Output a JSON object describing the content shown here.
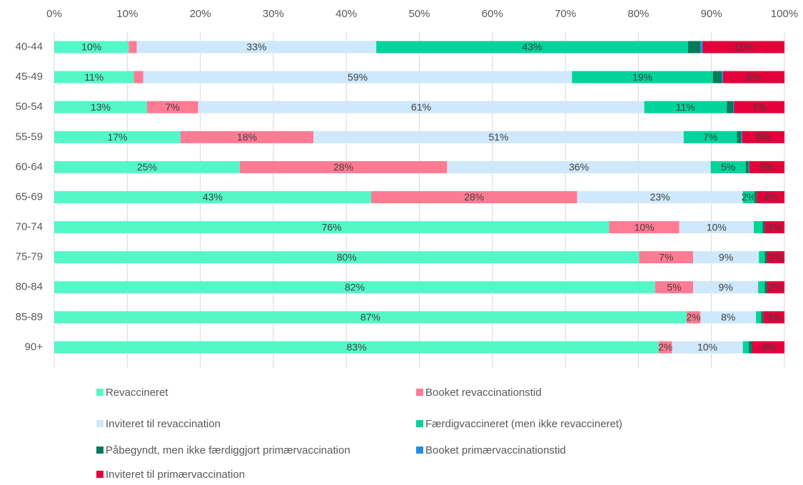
{
  "chart_data": {
    "type": "stacked-bar-horizontal",
    "categories": [
      "40-44",
      "45-49",
      "50-54",
      "55-59",
      "60-64",
      "65-69",
      "70-74",
      "75-79",
      "80-84",
      "85-89",
      "90+"
    ],
    "xlim": [
      0,
      100
    ],
    "xticks": [
      {
        "value": 0,
        "label": "0%"
      },
      {
        "value": 10,
        "label": "10%"
      },
      {
        "value": 20,
        "label": "20%"
      },
      {
        "value": 30,
        "label": "30%"
      },
      {
        "value": 40,
        "label": "40%"
      },
      {
        "value": 50,
        "label": "50%"
      },
      {
        "value": 60,
        "label": "60%"
      },
      {
        "value": 70,
        "label": "70%"
      },
      {
        "value": 80,
        "label": "80%"
      },
      {
        "value": 90,
        "label": "90%"
      },
      {
        "value": 100,
        "label": "100%"
      }
    ],
    "grid": true,
    "series": [
      {
        "name": "Revaccineret",
        "color": "#54f7c8",
        "values": [
          10.2,
          10.9,
          12.7,
          17.3,
          25.4,
          43.4,
          76.0,
          80.1,
          82.3,
          86.6,
          82.8
        ],
        "value_labels": [
          "10%",
          "11%",
          "13%",
          "17%",
          "25%",
          "43%",
          "76%",
          "80%",
          "82%",
          "87%",
          "83%"
        ]
      },
      {
        "name": "Booket revaccinationstid",
        "color": "#ff7b93",
        "values": [
          1.1,
          1.3,
          7.0,
          18.2,
          28.4,
          28.2,
          9.6,
          7.4,
          5.2,
          1.9,
          1.8
        ],
        "value_labels": [
          null,
          null,
          "7%",
          "18%",
          "28%",
          "28%",
          "10%",
          "7%",
          "5%",
          "2%",
          "2%"
        ]
      },
      {
        "name": "Inviteret til revaccination",
        "color": "#cfe8fb",
        "values": [
          32.8,
          58.7,
          61.1,
          50.7,
          36.1,
          22.7,
          10.2,
          9.0,
          8.9,
          7.6,
          9.7
        ],
        "value_labels": [
          "33%",
          "59%",
          "61%",
          "51%",
          "36%",
          "23%",
          "10%",
          "9%",
          "9%",
          "8%",
          "10%"
        ]
      },
      {
        "name": "Færdigvaccineret (men ikke revaccineret)",
        "color": "#00d49a",
        "values": [
          42.7,
          19.3,
          11.3,
          7.3,
          4.8,
          1.6,
          1.2,
          0.8,
          0.9,
          0.7,
          0.8
        ],
        "value_labels": [
          "43%",
          "19%",
          "11%",
          "7%",
          "5%",
          "2%",
          null,
          null,
          null,
          null,
          null
        ]
      },
      {
        "name": "Påbegyndt, men ikke færdiggjort primærvaccination",
        "color": "#047a5a",
        "values": [
          1.7,
          1.2,
          0.9,
          0.6,
          0.4,
          0.3,
          0.3,
          0.3,
          0.3,
          0.3,
          0.5
        ],
        "value_labels": [
          null,
          null,
          null,
          null,
          null,
          null,
          null,
          null,
          null,
          null,
          null
        ]
      },
      {
        "name": "Booket primærvaccinationstid",
        "color": "#1e8fe0",
        "values": [
          0.3,
          0.2,
          0.1,
          0.1,
          0.1,
          0,
          0,
          0,
          0,
          0,
          0
        ],
        "value_labels": [
          null,
          null,
          null,
          null,
          null,
          null,
          null,
          null,
          null,
          null,
          null
        ]
      },
      {
        "name": "Inviteret til primærvaccination",
        "color": "#e4003a",
        "values": [
          11.2,
          8.4,
          6.9,
          5.8,
          4.8,
          3.8,
          2.7,
          2.4,
          2.4,
          2.9,
          4.4
        ],
        "value_labels": [
          "11%",
          "8%",
          "7%",
          "6%",
          "5%",
          "4%",
          "3%",
          "2%",
          "2%",
          "3%",
          "4%"
        ]
      }
    ]
  }
}
